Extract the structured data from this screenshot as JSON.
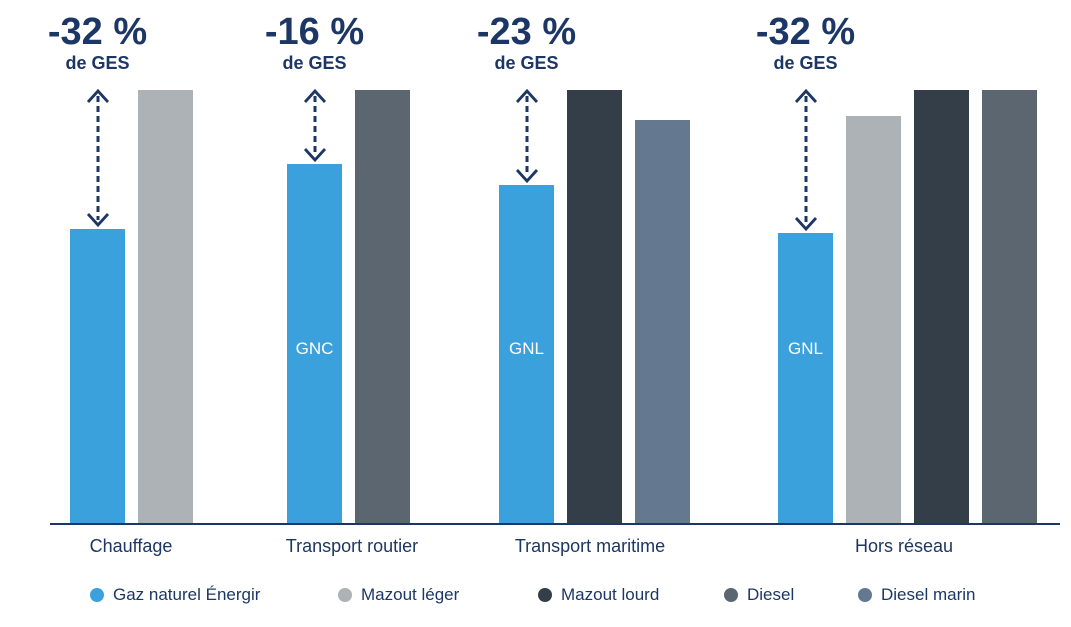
{
  "page": {
    "background": "#FFFFFF",
    "text_color": "#1C3765",
    "bar_tag_color": "#FFFFFF"
  },
  "chart_data": {
    "type": "bar",
    "title": "",
    "xlabel": "",
    "ylabel": "",
    "value_scale": "relative bar heights, tallest comparator fuel = 100 (no value axis shown)",
    "grid": false,
    "legend_position": "bottom",
    "categories": [
      "Chauffage",
      "Transport routier",
      "Transport maritime",
      "Hors réseau"
    ],
    "series": [
      {
        "name": "Gaz naturel Énergir",
        "color": "#3BA1DC"
      },
      {
        "name": "Mazout léger",
        "color": "#ACB2B5"
      },
      {
        "name": "Mazout lourd",
        "color": "#333E48"
      },
      {
        "name": "Diesel",
        "color": "#5B6670"
      },
      {
        "name": "Diesel marin",
        "color": "#64798F"
      }
    ],
    "groups": [
      {
        "category": "Chauffage",
        "reduction": "-32 %",
        "reduction_sub": "de GES",
        "bars": [
          {
            "series": "Gaz naturel Énergir",
            "value": 68,
            "tag": ""
          },
          {
            "series": "Mazout léger",
            "value": 100,
            "tag": ""
          }
        ]
      },
      {
        "category": "Transport routier",
        "reduction": "-16 %",
        "reduction_sub": "de GES",
        "bars": [
          {
            "series": "Gaz naturel Énergir",
            "value": 83,
            "tag": "GNC"
          },
          {
            "series": "Diesel",
            "value": 100,
            "tag": ""
          }
        ]
      },
      {
        "category": "Transport maritime",
        "reduction": "-23 %",
        "reduction_sub": "de GES",
        "bars": [
          {
            "series": "Gaz naturel Énergir",
            "value": 78,
            "tag": "GNL"
          },
          {
            "series": "Mazout lourd",
            "value": 100,
            "tag": ""
          },
          {
            "series": "Diesel marin",
            "value": 93,
            "tag": ""
          }
        ]
      },
      {
        "category": "Hors réseau",
        "reduction": "-32 %",
        "reduction_sub": "de GES",
        "bars": [
          {
            "series": "Gaz naturel Énergir",
            "value": 67,
            "tag": "GNL"
          },
          {
            "series": "Mazout léger",
            "value": 94,
            "tag": ""
          },
          {
            "series": "Mazout lourd",
            "value": 100,
            "tag": ""
          },
          {
            "series": "Diesel",
            "value": 100,
            "tag": ""
          }
        ]
      }
    ]
  }
}
